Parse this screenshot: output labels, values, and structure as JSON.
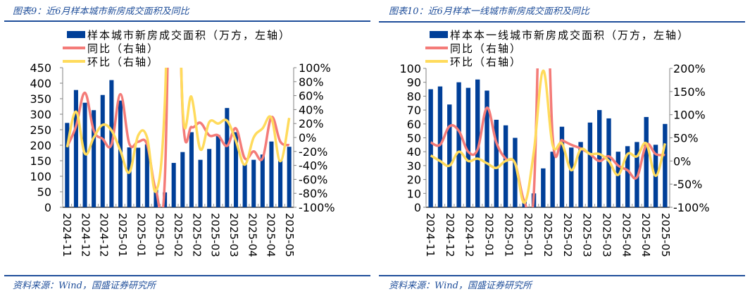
{
  "panels": [
    {
      "title": "图表9：近6月样本城市新房成交面积及同比",
      "source": "资料来源：Wind，国盛证券研究所"
    },
    {
      "title": "图表10：近6月样本一线城市新房成交面积及同比",
      "source": "资料来源：Wind，国盛证券研究所"
    }
  ],
  "colors": {
    "bar": "#003f98",
    "yoy": "#f47b78",
    "mom": "#ffdb5c",
    "rule": "#1f4e9a",
    "axis": "#808080"
  },
  "chart_data": [
    {
      "type": "bar",
      "title": "图表9：近6月样本城市新房成交面积及同比",
      "legend": [
        "样本城市新房成交面积（万方，左轴）",
        "同比（右轴）",
        "环比（右轴）"
      ],
      "legend_position": "top",
      "x_tick_labels": [
        "2024-11",
        "2024-12",
        "2024-12",
        "2025-01",
        "2025-01",
        "2025-01",
        "2025-02",
        "2025-02",
        "2025-03",
        "2025-03",
        "2025-04",
        "2025-04",
        "2025-05"
      ],
      "ylabel_left": "万方",
      "ylim_left": [
        0,
        450
      ],
      "yticks_left": [
        "0",
        "50",
        "100",
        "150",
        "200",
        "250",
        "300",
        "350",
        "400",
        "450"
      ],
      "ylim_right": [
        -100,
        100
      ],
      "yticks_right": [
        "-100%",
        "-80%",
        "-60%",
        "-40%",
        "-20%",
        "0%",
        "20%",
        "40%",
        "60%",
        "80%",
        "100%"
      ],
      "series": [
        {
          "name": "样本城市新房成交面积（万方，左轴）",
          "type": "bar",
          "axis": "left",
          "values": [
            272,
            378,
            337,
            313,
            362,
            410,
            344,
            193,
            192,
            203,
            57,
            48,
            143,
            178,
            242,
            153,
            188,
            233,
            320,
            242,
            140,
            153,
            170,
            212,
            152,
            195
          ]
        },
        {
          "name": "同比（右轴）",
          "type": "line",
          "axis": "right",
          "values": [
            -13,
            16,
            64,
            10,
            -2,
            -10,
            62,
            -9,
            -6,
            -10,
            -76,
            -60,
            500,
            38,
            15,
            21,
            3,
            3,
            -12,
            13,
            -30,
            -20,
            -30,
            29,
            -6,
            -11
          ]
        },
        {
          "name": "环比（右轴）",
          "type": "line",
          "axis": "right",
          "values": [
            -14,
            37,
            -23,
            0,
            18,
            10,
            -19,
            -50,
            3,
            0,
            -77,
            50,
            500,
            43,
            58,
            -17,
            22,
            20,
            24,
            -5,
            -39,
            0,
            13,
            28,
            -34,
            28
          ]
        }
      ]
    },
    {
      "type": "bar",
      "title": "图表10：近6月样本一线城市新房成交面积及同比",
      "legend": [
        "样本本一线城市新房成交面积（万方，左轴）",
        "同比（右轴）",
        "环比（右轴）"
      ],
      "legend_position": "top",
      "x_tick_labels": [
        "2024-11",
        "2024-12",
        "2024-12",
        "2025-01",
        "2025-01",
        "2025-01",
        "2025-02",
        "2025-02",
        "2025-03",
        "2025-03",
        "2025-04",
        "2025-04",
        "2025-05"
      ],
      "ylabel_left": "万方",
      "ylim_left": [
        0,
        100
      ],
      "yticks_left": [
        "0",
        "10",
        "20",
        "30",
        "40",
        "50",
        "60",
        "70",
        "80",
        "90",
        "100"
      ],
      "ylim_right": [
        -100,
        200
      ],
      "yticks_right": [
        "-100%",
        "-50%",
        "0%",
        "50%",
        "100%",
        "150%",
        "200%"
      ],
      "series": [
        {
          "name": "样本一线城市新房成交面积（万方，左轴）",
          "type": "bar",
          "axis": "left",
          "values": [
            85,
            87,
            74,
            90,
            86,
            92,
            84,
            63,
            59,
            50,
            5,
            10,
            28,
            40,
            58,
            43,
            47,
            61,
            70,
            64,
            40,
            44,
            47,
            65,
            45,
            60
          ]
        },
        {
          "name": "同比（右轴）",
          "type": "line",
          "axis": "right",
          "values": [
            40,
            35,
            75,
            65,
            20,
            25,
            115,
            40,
            5,
            -5,
            -88,
            -70,
            600,
            55,
            45,
            35,
            27,
            15,
            0,
            10,
            -10,
            -20,
            -35,
            35,
            15,
            13
          ]
        },
        {
          "name": "环比（右轴）",
          "type": "line",
          "axis": "right",
          "values": [
            12,
            0,
            -10,
            20,
            0,
            5,
            -5,
            -15,
            0,
            -5,
            -90,
            20,
            195,
            35,
            38,
            -20,
            25,
            15,
            15,
            0,
            -30,
            15,
            10,
            38,
            -32,
            38
          ]
        }
      ]
    }
  ]
}
